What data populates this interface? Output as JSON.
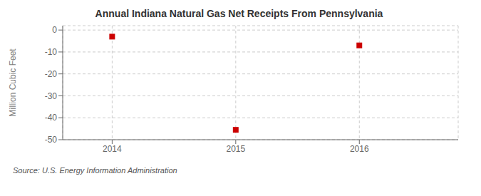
{
  "chart_data": {
    "type": "scatter",
    "title": "Annual Indiana Natural Gas Net Receipts From Pennsylvania",
    "ylabel": "Million Cubic Feet",
    "annotation": "Source: U.S. Energy Information Administration",
    "x": [
      2014,
      2015,
      2016
    ],
    "values": [
      -3.0,
      -45.5,
      -7.0
    ],
    "xlim": [
      2013.6,
      2016.8
    ],
    "ylim": [
      -50,
      2
    ],
    "xticks": [
      2014,
      2015,
      2016
    ],
    "yticks": [
      0,
      -10,
      -20,
      -30,
      -40,
      -50
    ],
    "color": "#cc0000",
    "marker": "square",
    "grid": true
  }
}
